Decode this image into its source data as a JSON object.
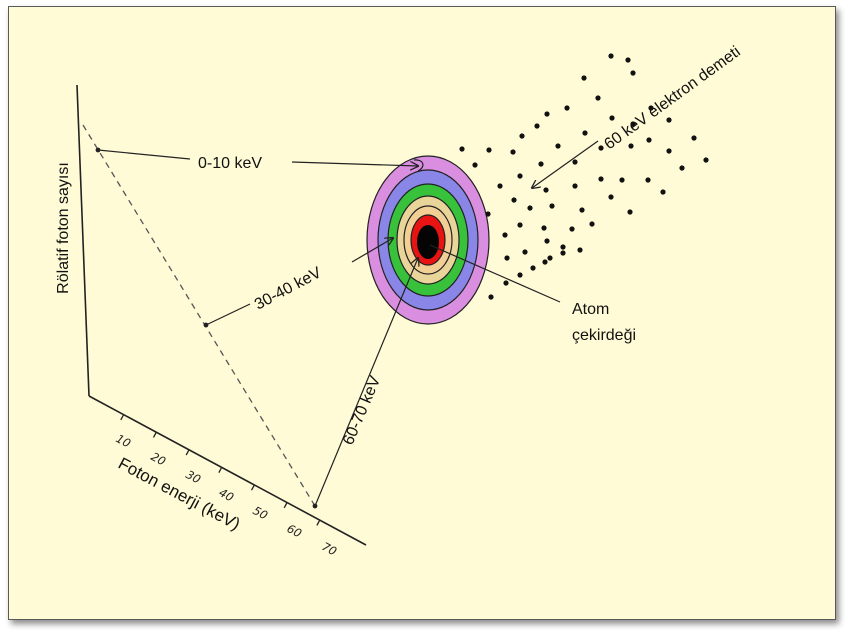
{
  "diagram": {
    "y_axis_label": "Rölatif foton sayısı",
    "x_axis_label": "Foton enerji (keV)",
    "x_ticks": [
      "10",
      "20",
      "30",
      "40",
      "50",
      "60",
      "70"
    ],
    "label_0_10": "0-10 keV",
    "label_30_40": "30-40 keV",
    "label_60_70": "60-70 keV",
    "beam_label": "60 keV elektron demeti",
    "nucleus_label_line1": "Atom",
    "nucleus_label_line2": "çekirdeği"
  },
  "colors": {
    "background": "#fffbd6",
    "shells": [
      "#d98ee0",
      "#8a86e8",
      "#38c23c",
      "#e9d49a",
      "#f2cf95",
      "#e81414",
      "#050505"
    ]
  }
}
